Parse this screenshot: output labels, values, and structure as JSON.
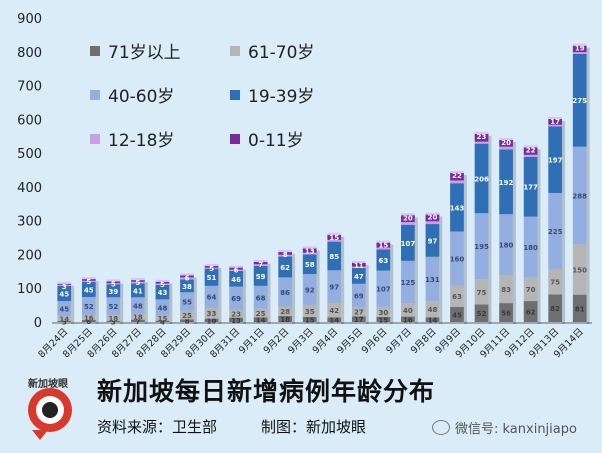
{
  "chart_data": {
    "type": "bar",
    "stacked": true,
    "categories": [
      "8月24日",
      "8月25日",
      "8月26日",
      "8月27日",
      "8月28日",
      "8月29日",
      "8月30日",
      "8月31日",
      "9月1日",
      "9月2日",
      "9月3日",
      "9月4日",
      "9月5日",
      "9月6日",
      "9月7日",
      "9月8日",
      "9月9日",
      "9月10日",
      "9月11日",
      "9月12日",
      "9月13日",
      "9月14日"
    ],
    "series": [
      {
        "name": "71岁以上",
        "color": "#6f6f6f",
        "values": [
          3,
          6,
          3,
          7,
          4,
          8,
          10,
          13,
          14,
          18,
          15,
          14,
          17,
          15,
          16,
          14,
          45,
          52,
          56,
          62,
          82,
          81
        ]
      },
      {
        "name": "61-70岁",
        "color": "#b5b5b5",
        "values": [
          14,
          16,
          18,
          18,
          15,
          25,
          33,
          23,
          25,
          28,
          35,
          42,
          27,
          30,
          40,
          48,
          63,
          75,
          83,
          70,
          75,
          150
        ]
      },
      {
        "name": "40-60岁",
        "color": "#93aee0",
        "values": [
          45,
          52,
          52,
          48,
          48,
          55,
          64,
          69,
          68,
          86,
          92,
          97,
          69,
          107,
          125,
          131,
          160,
          195,
          180,
          180,
          225,
          288
        ]
      },
      {
        "name": "19-39岁",
        "color": "#2e6fb6",
        "values": [
          45,
          45,
          39,
          41,
          43,
          38,
          51,
          46,
          59,
          62,
          58,
          85,
          47,
          63,
          107,
          97,
          143,
          206,
          192,
          177,
          197,
          275
        ]
      },
      {
        "name": "12-18岁",
        "color": "#c9a0e8",
        "values": [
          3,
          3,
          3,
          5,
          4,
          6,
          3,
          4,
          5,
          5,
          5,
          5,
          4,
          5,
          8,
          8,
          8,
          6,
          8,
          6,
          5,
          5
        ]
      },
      {
        "name": "0-11岁",
        "color": "#7a2a9a",
        "values": [
          3,
          5,
          5,
          5,
          5,
          6,
          5,
          6,
          7,
          8,
          13,
          15,
          11,
          15,
          20,
          20,
          22,
          23,
          20,
          22,
          17,
          19
        ]
      }
    ],
    "labels": {
      "71岁以上": [
        3,
        6,
        3,
        7,
        4,
        8,
        10,
        13,
        14,
        18,
        15,
        14,
        17,
        15,
        16,
        14,
        45,
        52,
        56,
        62,
        82,
        81
      ],
      "61-70岁": [
        14,
        16,
        18,
        18,
        15,
        25,
        33,
        23,
        25,
        28,
        35,
        42,
        27,
        30,
        40,
        48,
        63,
        75,
        83,
        70,
        75,
        150
      ],
      "40-60岁": [
        45,
        52,
        52,
        48,
        48,
        55,
        64,
        69,
        68,
        86,
        92,
        97,
        69,
        107,
        125,
        131,
        160,
        195,
        180,
        180,
        225,
        288
      ],
      "19-39岁": [
        45,
        45,
        39,
        41,
        43,
        38,
        51,
        46,
        59,
        62,
        58,
        85,
        47,
        63,
        107,
        97,
        143,
        206,
        192,
        177,
        197,
        275
      ],
      "0-11岁": [
        3,
        5,
        5,
        5,
        5,
        6,
        5,
        6,
        7,
        8,
        13,
        15,
        11,
        15,
        20,
        20,
        22,
        23,
        20,
        22,
        17,
        19
      ]
    },
    "ylim": [
      0,
      900
    ],
    "yticks": [
      0,
      100,
      200,
      300,
      400,
      500,
      600,
      700,
      800,
      900
    ],
    "legend_position": "top-left",
    "grid": false
  },
  "legend": [
    {
      "label": "71岁以上",
      "color": "#6f6f6f"
    },
    {
      "label": "61-70岁",
      "color": "#b5b5b5"
    },
    {
      "label": "40-60岁",
      "color": "#93aee0"
    },
    {
      "label": "19-39岁",
      "color": "#2e6fb6"
    },
    {
      "label": "12-18岁",
      "color": "#c9a0e8"
    },
    {
      "label": "0-11岁",
      "color": "#7a2a9a"
    }
  ],
  "footer": {
    "title": "新加坡每日新增病例年龄分布",
    "source_label": "资料来源：",
    "source": "卫生部",
    "made_label": "制图：",
    "made_by": "新加坡眼",
    "logo_text": "新加坡眼",
    "wechat": "微信号: kanxinjiapo"
  }
}
